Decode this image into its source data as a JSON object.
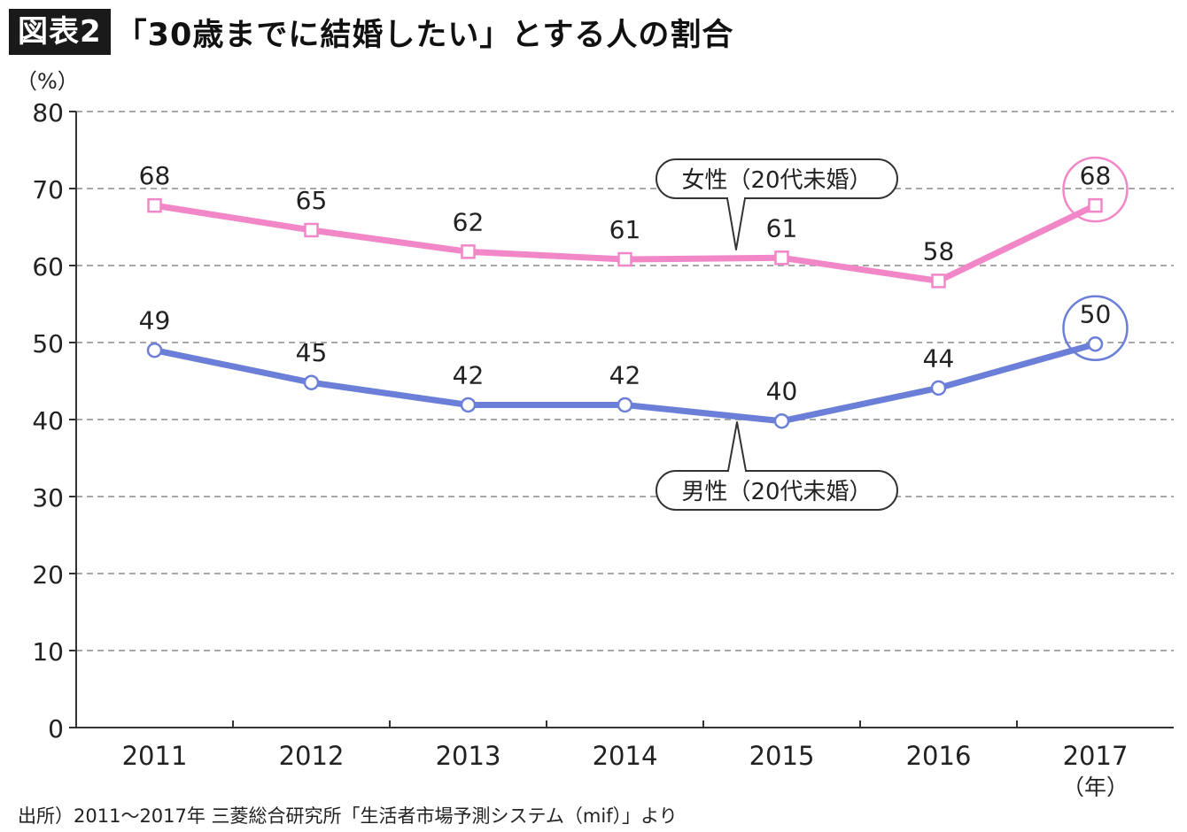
{
  "header": {
    "badge": "図表2",
    "title": "「30歳までに結婚したい」とする人の割合"
  },
  "chart_data": {
    "type": "line",
    "x": [
      "2011",
      "2012",
      "2013",
      "2014",
      "2015",
      "2016",
      "2017"
    ],
    "x_unit": "（年）",
    "y_unit": "（%）",
    "ylim": [
      0,
      80
    ],
    "yticks": [
      0,
      10,
      20,
      30,
      40,
      50,
      60,
      70,
      80
    ],
    "grid": "dashed-horizontal",
    "series": [
      {
        "name": "女性（20代未婚）",
        "color": "#f287c8",
        "marker": "square",
        "values": [
          67.8,
          64.6,
          61.8,
          60.8,
          61,
          58,
          67.8
        ],
        "labels": [
          "68",
          "65",
          "62",
          "61",
          "61",
          "58",
          "68"
        ],
        "highlight_last": true
      },
      {
        "name": "男性（20代未婚）",
        "color": "#6b7fd8",
        "marker": "circle",
        "values": [
          49,
          44.8,
          41.9,
          41.9,
          39.8,
          44.1,
          49.8
        ],
        "labels": [
          "49",
          "45",
          "42",
          "42",
          "40",
          "44",
          "50"
        ],
        "highlight_last": true
      }
    ]
  },
  "source": "出所）2011〜2017年 三菱総合研究所「生活者市場予測システム（mif）」より"
}
